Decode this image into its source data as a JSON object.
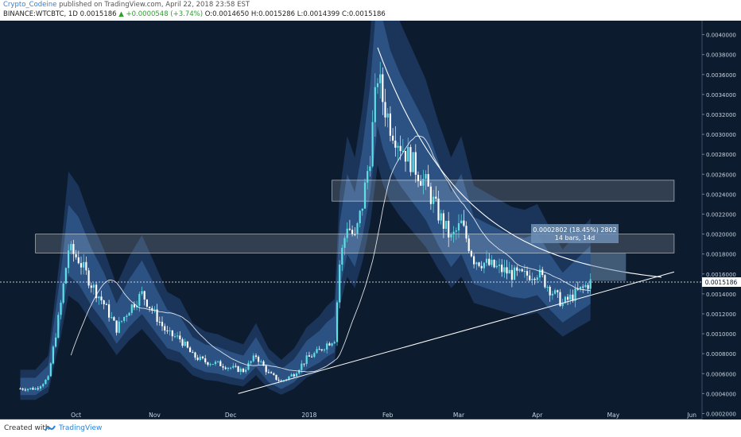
{
  "header": {
    "author": "Crypto_Codeine",
    "published": "published on TradingView.com, April 22, 2018 23:58 EST",
    "symbol": "BINANCE:WTCBTC, 1D",
    "last": "0.0015186",
    "change_arrow": "▲",
    "change": "+0.0000548 (+3.74%)",
    "ohlc": "O:0.0014650 H:0.0015286 L:0.0014399 C:0.0015186"
  },
  "footer": {
    "created": "Created with",
    "brand": "TradingView",
    "brand_icon": "tradingview-logo-icon"
  },
  "colors": {
    "background": "#0d1b2e",
    "band_outer": "#1d3a60",
    "band_inner": "#2f5a8d",
    "candle_up": "#5ce0e6",
    "candle_down": "#ffffff",
    "trendline": "#ffffff",
    "text": "#c8d3e0",
    "zone_fill": "#d9e4ef",
    "measure_fill": "#6d8fb5",
    "brand": "#2b82d9"
  },
  "measure": {
    "line1": "0.0002802 (18.45%) 2802",
    "line2": "14 bars, 14d"
  },
  "price_tag": "0.0015186",
  "chart_data": {
    "type": "candlestick",
    "x_axis": {
      "tick_labels": [
        "Oct",
        "Nov",
        "Dec",
        "2018",
        "Feb",
        "Mar",
        "Apr",
        "May",
        "Jun"
      ]
    },
    "y_axis": {
      "range": [
        0.00014,
        0.00414
      ],
      "tick_labels": [
        "0.0040000",
        "0.0038000",
        "0.0036000",
        "0.0034000",
        "0.0032000",
        "0.0030000",
        "0.0028000",
        "0.0026000",
        "0.0024000",
        "0.0022000",
        "0.0020000",
        "0.0018000",
        "0.0016000",
        "0.0014000",
        "0.0012000",
        "0.0010000",
        "0.0008000",
        "0.0006000",
        "0.0004000",
        "0.0002000"
      ]
    },
    "close_path": [
      [
        "2017-09-15",
        0.00045
      ],
      [
        "2017-09-20",
        0.00055
      ],
      [
        "2017-09-25",
        0.0013
      ],
      [
        "2017-09-28",
        0.00185
      ],
      [
        "2017-10-02",
        0.00175
      ],
      [
        "2017-10-07",
        0.0015
      ],
      [
        "2017-10-12",
        0.0013
      ],
      [
        "2017-10-17",
        0.00105
      ],
      [
        "2017-10-22",
        0.00125
      ],
      [
        "2017-10-27",
        0.0014
      ],
      [
        "2017-11-01",
        0.0012
      ],
      [
        "2017-11-06",
        0.001
      ],
      [
        "2017-11-11",
        0.00095
      ],
      [
        "2017-11-16",
        0.00078
      ],
      [
        "2017-11-21",
        0.00072
      ],
      [
        "2017-11-26",
        0.0007
      ],
      [
        "2017-12-01",
        0.00066
      ],
      [
        "2017-12-06",
        0.00063
      ],
      [
        "2017-12-11",
        0.00078
      ],
      [
        "2017-12-16",
        0.0006
      ],
      [
        "2017-12-21",
        0.00052
      ],
      [
        "2017-12-26",
        0.0006
      ],
      [
        "2017-12-31",
        0.00075
      ],
      [
        "2018-01-05",
        0.00083
      ],
      [
        "2018-01-08",
        0.0009
      ],
      [
        "2018-01-11",
        0.00095
      ],
      [
        "2018-01-13",
        0.0017
      ],
      [
        "2018-01-16",
        0.0021
      ],
      [
        "2018-01-19",
        0.00195
      ],
      [
        "2018-01-22",
        0.0023
      ],
      [
        "2018-01-25",
        0.0028
      ],
      [
        "2018-01-28",
        0.0036
      ],
      [
        "2018-01-30",
        0.00335
      ],
      [
        "2018-02-02",
        0.0031
      ],
      [
        "2018-02-06",
        0.0029
      ],
      [
        "2018-02-11",
        0.0027
      ],
      [
        "2018-02-16",
        0.0025
      ],
      [
        "2018-02-21",
        0.0022
      ],
      [
        "2018-02-26",
        0.00195
      ],
      [
        "2018-03-02",
        0.0021
      ],
      [
        "2018-03-07",
        0.00175
      ],
      [
        "2018-03-12",
        0.0017
      ],
      [
        "2018-03-17",
        0.00165
      ],
      [
        "2018-03-22",
        0.0016
      ],
      [
        "2018-03-27",
        0.00158
      ],
      [
        "2018-04-01",
        0.00162
      ],
      [
        "2018-04-06",
        0.00145
      ],
      [
        "2018-04-11",
        0.0013
      ],
      [
        "2018-04-16",
        0.0014
      ],
      [
        "2018-04-22",
        0.0015186
      ]
    ],
    "zones": [
      {
        "x0": "2017-09-15",
        "x1": "2018-05-25",
        "y0": 0.00181,
        "y1": 0.002
      },
      {
        "x0": "2018-01-10",
        "x1": "2018-05-25",
        "y0": 0.00233,
        "y1": 0.00254
      }
    ],
    "grid": false,
    "legend": "none"
  }
}
